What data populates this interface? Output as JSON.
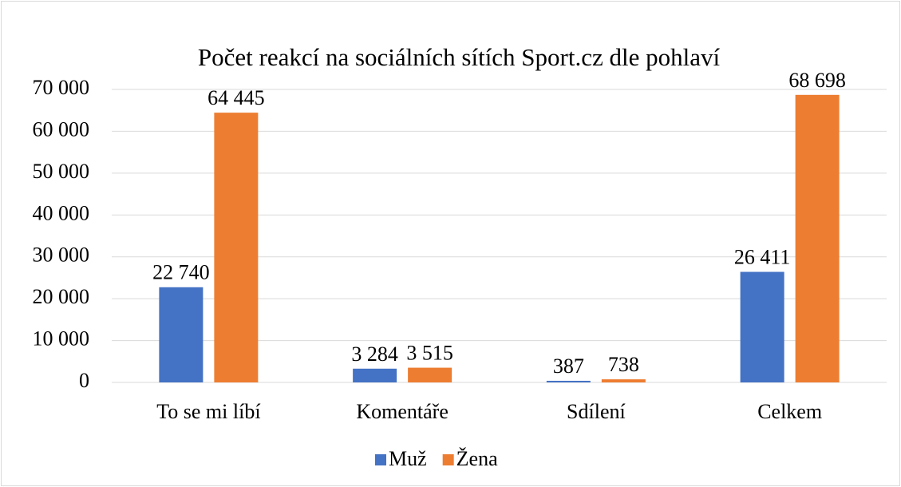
{
  "chart_data": {
    "type": "bar",
    "title": "Počet reakcí na sociálních sítích Sport.cz dle pohlaví",
    "categories": [
      "To se mi líbí",
      "Komentáře",
      "Sdílení",
      "Celkem"
    ],
    "series": [
      {
        "name": "Muž",
        "color": "#4472c4",
        "values": [
          22740,
          3284,
          387,
          26411
        ],
        "value_labels": [
          "22 740",
          "3 284",
          "387",
          "26 411"
        ]
      },
      {
        "name": "Žena",
        "color": "#ed7d31",
        "values": [
          64445,
          3515,
          738,
          68698
        ],
        "value_labels": [
          "64 445",
          "3 515",
          "738",
          "68 698"
        ]
      }
    ],
    "ylim": [
      0,
      70000
    ],
    "yticks": [
      0,
      {
        "value": 10000,
        "label": "10 000"
      },
      {
        "value": 20000,
        "label": "20 000"
      },
      {
        "value": 30000,
        "label": "30 000"
      },
      {
        "value": 40000,
        "label": "40 000"
      },
      {
        "value": 50000,
        "label": "50 000"
      },
      {
        "value": 60000,
        "label": "60 000"
      },
      {
        "value": 70000,
        "label": "70 000"
      }
    ],
    "grid": true,
    "legend": "bottom"
  }
}
